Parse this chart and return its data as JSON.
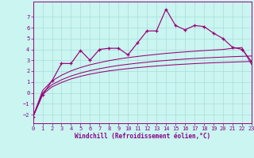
{
  "xlabel": "Windchill (Refroidissement éolien,°C)",
  "background_color": "#caf5f0",
  "grid_color": "#aaddda",
  "line_color": "#990077",
  "x": [
    0,
    1,
    2,
    3,
    4,
    5,
    6,
    7,
    8,
    9,
    10,
    11,
    12,
    13,
    14,
    15,
    16,
    17,
    18,
    19,
    20,
    21,
    22,
    23
  ],
  "y_main": [
    -2.2,
    -0.2,
    1.1,
    2.7,
    2.7,
    3.9,
    3.0,
    4.0,
    4.1,
    4.1,
    3.5,
    4.6,
    5.7,
    5.7,
    7.7,
    6.2,
    5.8,
    6.2,
    6.1,
    5.5,
    5.0,
    4.2,
    4.0,
    2.9
  ],
  "y_line1": [
    -2.2,
    -0.15,
    0.55,
    0.95,
    1.28,
    1.52,
    1.72,
    1.88,
    2.02,
    2.13,
    2.23,
    2.32,
    2.4,
    2.47,
    2.53,
    2.59,
    2.64,
    2.69,
    2.73,
    2.77,
    2.8,
    2.83,
    2.86,
    2.89
  ],
  "y_line2": [
    -2.2,
    0.0,
    0.75,
    1.2,
    1.55,
    1.82,
    2.04,
    2.22,
    2.38,
    2.52,
    2.63,
    2.73,
    2.82,
    2.91,
    2.98,
    3.05,
    3.11,
    3.16,
    3.21,
    3.25,
    3.29,
    3.33,
    3.36,
    3.39
  ],
  "y_line3": [
    -2.2,
    0.2,
    1.1,
    1.62,
    2.02,
    2.33,
    2.58,
    2.78,
    2.96,
    3.11,
    3.24,
    3.35,
    3.45,
    3.54,
    3.63,
    3.7,
    3.77,
    3.83,
    3.89,
    3.94,
    3.99,
    4.1,
    4.17,
    2.62
  ],
  "ylim": [
    -2.8,
    8.4
  ],
  "xlim": [
    0,
    23
  ],
  "yticks": [
    -2,
    -1,
    0,
    1,
    2,
    3,
    4,
    5,
    6,
    7
  ],
  "xticks": [
    0,
    1,
    2,
    3,
    4,
    5,
    6,
    7,
    8,
    9,
    10,
    11,
    12,
    13,
    14,
    15,
    16,
    17,
    18,
    19,
    20,
    21,
    22,
    23
  ],
  "font_color": "#880088",
  "tick_fontsize": 5.0,
  "xlabel_fontsize": 5.5
}
